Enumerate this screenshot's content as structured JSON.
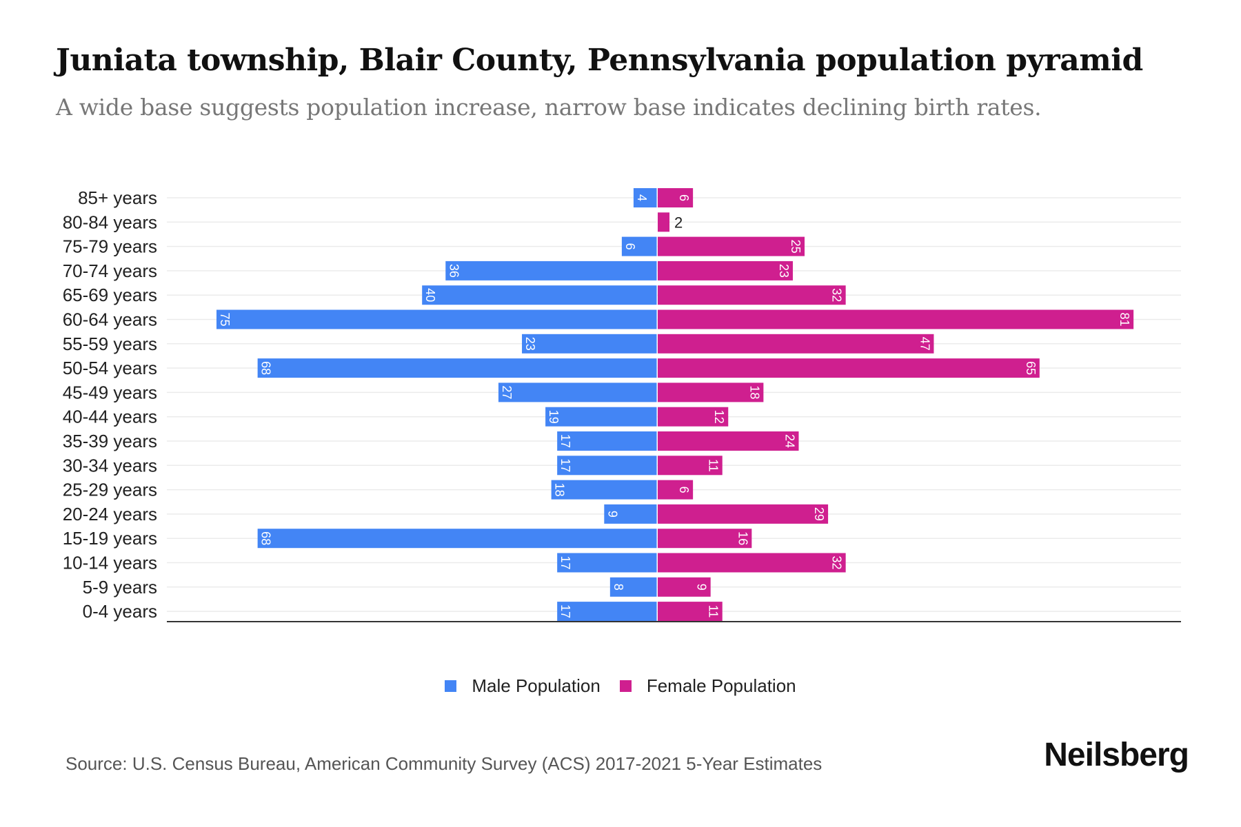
{
  "header": {
    "title": "Juniata township, Blair County, Pennsylvania population pyramid",
    "subtitle": "A wide base suggests population increase, narrow base indicates declining birth rates."
  },
  "legend": {
    "male_label": "Male Population",
    "female_label": "Female Population"
  },
  "footer": {
    "source": "Source: U.S. Census Bureau, American Community Survey (ACS) 2017-2021 5-Year Estimates",
    "brand": "Neilsberg"
  },
  "colors": {
    "male": "#4385f5",
    "female": "#cf1f8f",
    "grid": "#ebebeb",
    "axis": "#333333",
    "label_text": "#222222"
  },
  "chart_data": {
    "type": "bar",
    "orientation": "horizontal-pyramid",
    "title": "Juniata township, Blair County, Pennsylvania population pyramid",
    "subtitle": "A wide base suggests population increase, narrow base indicates declining birth rates.",
    "xlabel": "",
    "ylabel": "",
    "xlim": [
      -75,
      81
    ],
    "grid": true,
    "legend_position": "bottom",
    "categories": [
      "85+ years",
      "80-84 years",
      "75-79 years",
      "70-74 years",
      "65-69 years",
      "60-64 years",
      "55-59 years",
      "50-54 years",
      "45-49 years",
      "40-44 years",
      "35-39 years",
      "30-34 years",
      "25-29 years",
      "20-24 years",
      "15-19 years",
      "10-14 years",
      "5-9 years",
      "0-4 years"
    ],
    "series": [
      {
        "name": "Male Population",
        "side": "left",
        "values": [
          4,
          0,
          6,
          36,
          40,
          75,
          23,
          68,
          27,
          19,
          17,
          17,
          18,
          9,
          68,
          17,
          8,
          17
        ]
      },
      {
        "name": "Female Population",
        "side": "right",
        "values": [
          6,
          2,
          25,
          23,
          32,
          81,
          47,
          65,
          18,
          12,
          24,
          11,
          6,
          29,
          16,
          32,
          9,
          11
        ]
      }
    ]
  }
}
